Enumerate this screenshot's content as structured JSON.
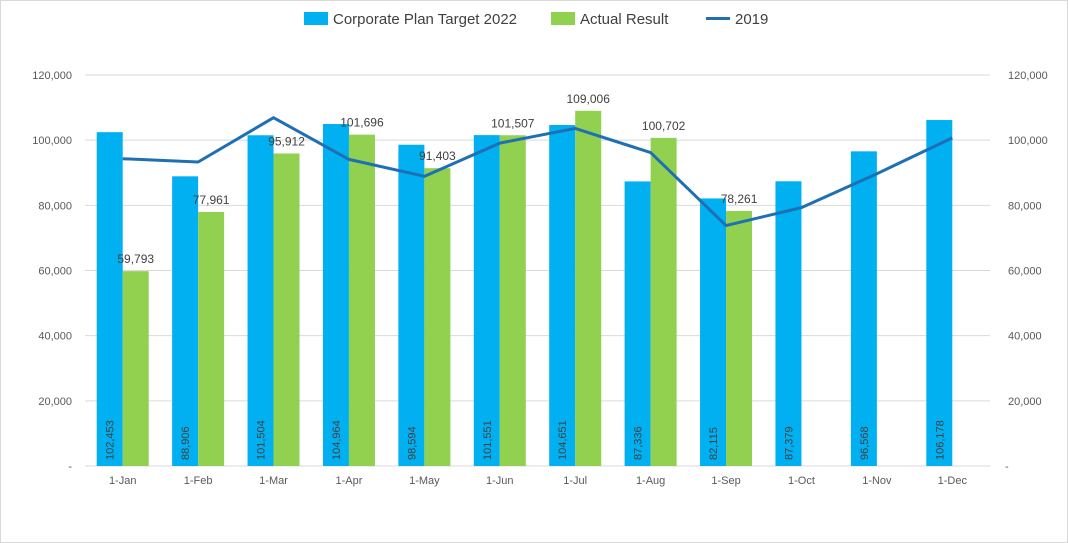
{
  "chart_data": {
    "type": "bar",
    "categories": [
      "1-Jan",
      "1-Feb",
      "1-Mar",
      "1-Apr",
      "1-May",
      "1-Jun",
      "1-Jul",
      "1-Aug",
      "1-Sep",
      "1-Oct",
      "1-Nov",
      "1-Dec"
    ],
    "series": [
      {
        "name": "Corporate Plan Target 2022",
        "kind": "bar",
        "color": "#00b0f0",
        "values": [
          102453,
          88906,
          101504,
          104964,
          98594,
          101551,
          104651,
          87336,
          82115,
          87379,
          96568,
          106178
        ],
        "labels": [
          "102,453",
          "88,906",
          "101,504",
          "104,964",
          "98,594",
          "101,551",
          "104,651",
          "87,336",
          "82,115",
          "87,379",
          "96,568",
          "106,178"
        ]
      },
      {
        "name": "Actual Result",
        "kind": "bar",
        "color": "#92d050",
        "values": [
          59793,
          77961,
          95912,
          101696,
          91403,
          101507,
          109006,
          100702,
          78261,
          null,
          null,
          null
        ],
        "labels": [
          "59,793",
          "77,961",
          "95,912",
          "101,696",
          "91,403",
          "101,507",
          "109,006",
          "100,702",
          "78,261",
          "",
          "",
          ""
        ]
      },
      {
        "name": "2019",
        "kind": "line",
        "color": "#1f6fb5",
        "values": [
          94300,
          93300,
          106900,
          94100,
          88900,
          99100,
          103600,
          96200,
          73800,
          79300,
          89700,
          100700
        ]
      }
    ],
    "ylim": [
      0,
      120000
    ],
    "yticks": [
      {
        "value": 0,
        "label": "-"
      },
      {
        "value": 20000,
        "label": "20,000"
      },
      {
        "value": 40000,
        "label": "40,000"
      },
      {
        "value": 60000,
        "label": "60,000"
      },
      {
        "value": 80000,
        "label": "80,000"
      },
      {
        "value": 100000,
        "label": "100,000"
      },
      {
        "value": 120000,
        "label": "120,000"
      }
    ],
    "secondary_axis": true,
    "grid": true,
    "legend_position": "top"
  }
}
